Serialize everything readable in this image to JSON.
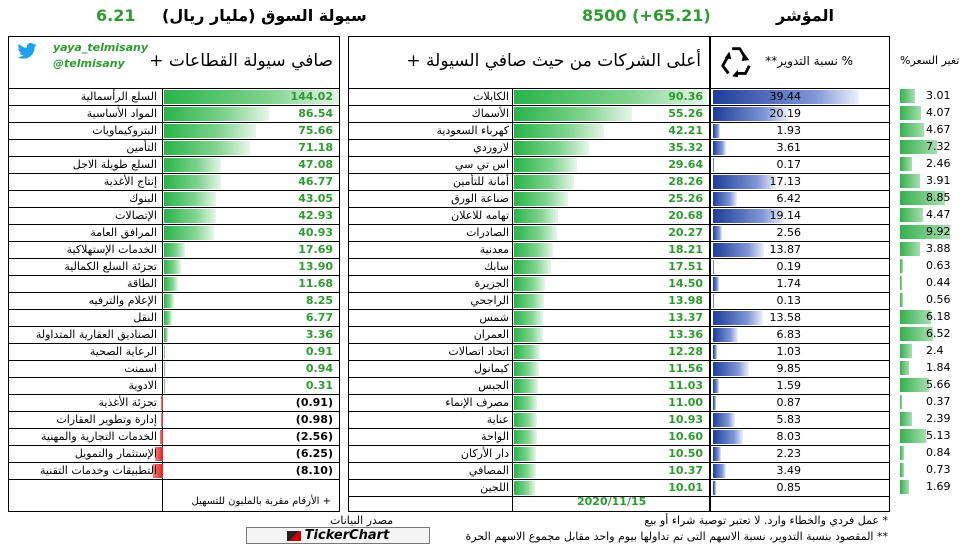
{
  "header": {
    "liquidity_title": "سيولة السوق (مليار ريال)",
    "liquidity_value": "6.21",
    "index_title": "المؤشر",
    "index_value": "8500 (+65.21)"
  },
  "sectors": {
    "title": "صافي سيولة القطاعات +",
    "twitter_handle": "yaya_telmisany",
    "twitter_at": "@telmisany",
    "footnote": "+ الأرقام مقربة بالملبون للتسهيل",
    "items": [
      {
        "name": "السلع الرأسمالية",
        "value": "144.02",
        "num": 144.02
      },
      {
        "name": "المواد الأساسية",
        "value": "86.54",
        "num": 86.54
      },
      {
        "name": "البتروكيماويات",
        "value": "75.66",
        "num": 75.66
      },
      {
        "name": "التأمين",
        "value": "71.18",
        "num": 71.18
      },
      {
        "name": "السلع طويلة الاجل",
        "value": "47.08",
        "num": 47.08
      },
      {
        "name": "إنتاج الأغذية",
        "value": "46.77",
        "num": 46.77
      },
      {
        "name": "البنوك",
        "value": "43.05",
        "num": 43.05
      },
      {
        "name": "الإتصالات",
        "value": "42.93",
        "num": 42.93
      },
      {
        "name": "المرافق العامة",
        "value": "40.93",
        "num": 40.93
      },
      {
        "name": "الخدمات الإستهلاكية",
        "value": "17.69",
        "num": 17.69
      },
      {
        "name": "تجزئة السلع الكمالية",
        "value": "13.90",
        "num": 13.9
      },
      {
        "name": "الطاقة",
        "value": "11.68",
        "num": 11.68
      },
      {
        "name": "الإعلام والترفيه",
        "value": "8.25",
        "num": 8.25
      },
      {
        "name": "النقل",
        "value": "6.77",
        "num": 6.77
      },
      {
        "name": "الصناديق العقارية المتداولة",
        "value": "3.36",
        "num": 3.36
      },
      {
        "name": "الرعاية الصحية",
        "value": "0.91",
        "num": 0.91
      },
      {
        "name": "اسمنت",
        "value": "0.94",
        "num": 0.94
      },
      {
        "name": "الادوية",
        "value": "0.31",
        "num": 0.31
      },
      {
        "name": "تجزئة الأغذية",
        "value": "(0.91)",
        "num": -0.91
      },
      {
        "name": "إدارة وتطوير العقارات",
        "value": "(0.98)",
        "num": -0.98
      },
      {
        "name": "الخدمات التجارية والمهنية",
        "value": "(2.56)",
        "num": -2.56
      },
      {
        "name": "الإستثمار والتمويل",
        "value": "(6.25)",
        "num": -6.25
      },
      {
        "name": "التطبيقات وخدمات التقنية",
        "value": "(8.10)",
        "num": -8.1
      }
    ]
  },
  "companies": {
    "title": "أعلى الشركات من حيث صافي السيولة +",
    "date": "2020/11/15",
    "items": [
      {
        "name": "الكابلات",
        "value": "90.36",
        "num": 90.36
      },
      {
        "name": "الأسماك",
        "value": "55.26",
        "num": 55.26
      },
      {
        "name": "كهرباء السعودية",
        "value": "42.21",
        "num": 42.21
      },
      {
        "name": "لازوردي",
        "value": "35.32",
        "num": 35.32
      },
      {
        "name": "اس تي سي",
        "value": "29.64",
        "num": 29.64
      },
      {
        "name": "أمانة للتأمين",
        "value": "28.26",
        "num": 28.26
      },
      {
        "name": "صناعة الورق",
        "value": "25.26",
        "num": 25.26
      },
      {
        "name": "تهامه للاعلان",
        "value": "20.68",
        "num": 20.68
      },
      {
        "name": "الصادرات",
        "value": "20.27",
        "num": 20.27
      },
      {
        "name": "معدنية",
        "value": "18.21",
        "num": 18.21
      },
      {
        "name": "سابك",
        "value": "17.51",
        "num": 17.51
      },
      {
        "name": "الجزيرة",
        "value": "14.50",
        "num": 14.5
      },
      {
        "name": "الراجحي",
        "value": "13.98",
        "num": 13.98
      },
      {
        "name": "شمس",
        "value": "13.37",
        "num": 13.37
      },
      {
        "name": "العمران",
        "value": "13.36",
        "num": 13.36
      },
      {
        "name": "اتحاد اتصالات",
        "value": "12.28",
        "num": 12.28
      },
      {
        "name": "كيمانول",
        "value": "11.56",
        "num": 11.56
      },
      {
        "name": "الجبس",
        "value": "11.03",
        "num": 11.03
      },
      {
        "name": "مصرف الإنماء",
        "value": "11.00",
        "num": 11.0
      },
      {
        "name": "عناية",
        "value": "10.93",
        "num": 10.93
      },
      {
        "name": "الواحة",
        "value": "10.60",
        "num": 10.6
      },
      {
        "name": "دار الأركان",
        "value": "10.50",
        "num": 10.5
      },
      {
        "name": "المصافي",
        "value": "10.37",
        "num": 10.37
      },
      {
        "name": "اللجين",
        "value": "10.01",
        "num": 10.01
      }
    ]
  },
  "turnover": {
    "title": "% نسبة التدوير**",
    "recycle_icon": "recycle-icon",
    "items": [
      {
        "value": "39.44",
        "num": 39.44
      },
      {
        "value": "20.19",
        "num": 20.19
      },
      {
        "value": "1.93",
        "num": 1.93
      },
      {
        "value": "3.61",
        "num": 3.61
      },
      {
        "value": "0.17",
        "num": 0.17
      },
      {
        "value": "17.13",
        "num": 17.13
      },
      {
        "value": "6.42",
        "num": 6.42
      },
      {
        "value": "19.14",
        "num": 19.14
      },
      {
        "value": "2.56",
        "num": 2.56
      },
      {
        "value": "13.87",
        "num": 13.87
      },
      {
        "value": "0.19",
        "num": 0.19
      },
      {
        "value": "1.74",
        "num": 1.74
      },
      {
        "value": "0.13",
        "num": 0.13
      },
      {
        "value": "13.58",
        "num": 13.58
      },
      {
        "value": "6.83",
        "num": 6.83
      },
      {
        "value": "1.03",
        "num": 1.03
      },
      {
        "value": "9.85",
        "num": 9.85
      },
      {
        "value": "1.59",
        "num": 1.59
      },
      {
        "value": "0.87",
        "num": 0.87
      },
      {
        "value": "5.83",
        "num": 5.83
      },
      {
        "value": "8.03",
        "num": 8.03
      },
      {
        "value": "2.23",
        "num": 2.23
      },
      {
        "value": "3.49",
        "num": 3.49
      },
      {
        "value": "0.85",
        "num": 0.85
      }
    ]
  },
  "price_change": {
    "title": "تغير السعر%",
    "items": [
      {
        "value": "3.01",
        "num": 3.01
      },
      {
        "value": "4.07",
        "num": 4.07
      },
      {
        "value": "4.67",
        "num": 4.67
      },
      {
        "value": "7.32",
        "num": 7.32
      },
      {
        "value": "2.46",
        "num": 2.46
      },
      {
        "value": "3.91",
        "num": 3.91
      },
      {
        "value": "8.85",
        "num": 8.85
      },
      {
        "value": "4.47",
        "num": 4.47
      },
      {
        "value": "9.92",
        "num": 9.92
      },
      {
        "value": "3.88",
        "num": 3.88
      },
      {
        "value": "0.63",
        "num": 0.63
      },
      {
        "value": "0.44",
        "num": 0.44
      },
      {
        "value": "0.56",
        "num": 0.56
      },
      {
        "value": "6.18",
        "num": 6.18
      },
      {
        "value": "6.52",
        "num": 6.52
      },
      {
        "value": "2.4",
        "num": 2.4
      },
      {
        "value": "1.84",
        "num": 1.84
      },
      {
        "value": "5.66",
        "num": 5.66
      },
      {
        "value": "0.37",
        "num": 0.37
      },
      {
        "value": "2.39",
        "num": 2.39
      },
      {
        "value": "5.13",
        "num": 5.13
      },
      {
        "value": "0.84",
        "num": 0.84
      },
      {
        "value": "0.73",
        "num": 0.73
      },
      {
        "value": "1.69",
        "num": 1.69
      }
    ]
  },
  "footer": {
    "source_label": "مصدر البيانات",
    "source_name": "TickerChart",
    "note1": "* عمل فردي والخطاء وارد. لا تعتبر توصية شراء أو بيع",
    "note2": "** المقصود بنسبة التدوير، نسبة الاسهم التى تم تداولها بيوم واحد مقابل مجموع الاسهم الحرة"
  },
  "colors": {
    "accent_green": "#2e9a30",
    "positive_bar": "#29b34a",
    "negative_bar": "#e02020",
    "turnover_bar": "#1f3d99",
    "twitter_blue": "#1da1f2"
  }
}
